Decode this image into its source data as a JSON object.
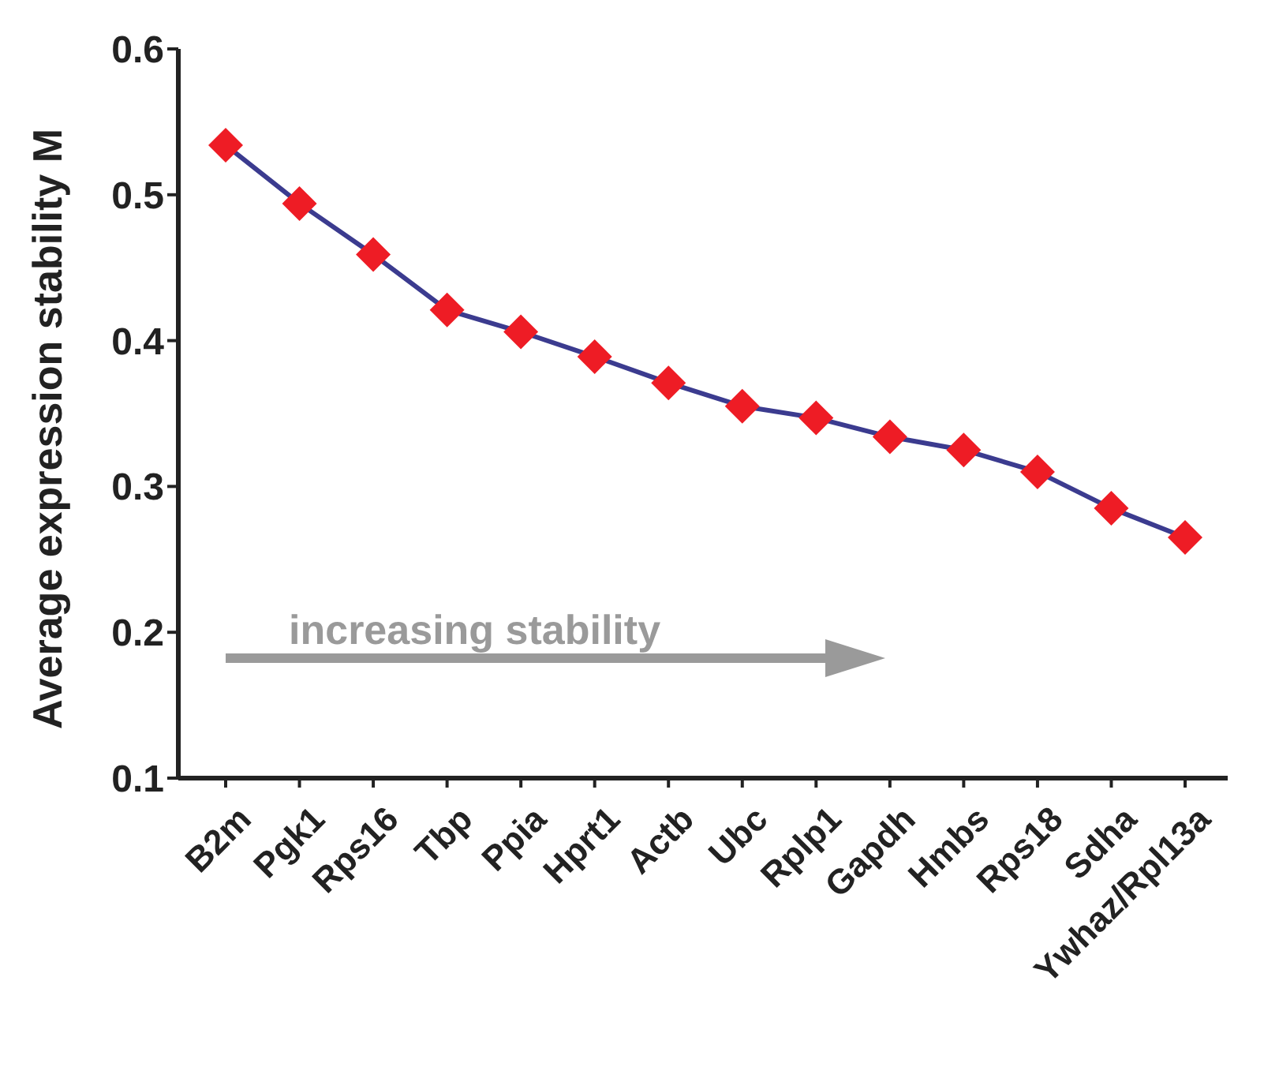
{
  "chart_data": {
    "type": "line",
    "ylabel": "Average expression stability M",
    "categories": [
      "B2m",
      "Pgk1",
      "Rps16",
      "Tbp",
      "Ppia",
      "Hprt1",
      "Actb",
      "Ubc",
      "Rplp1",
      "Gapdh",
      "Hmbs",
      "Rps18",
      "Sdha",
      "Ywhaz/Rpl13a"
    ],
    "series": [
      {
        "color": "#3b3b8f",
        "colors": [
          "#ee1c25",
          "#ee1c25",
          "#ee1c25",
          "#ee1c25",
          "#ee1c25",
          "#ee1c25",
          "#ee1c25",
          "#ee1c25",
          "#ee1c25",
          "#ee1c25",
          "#ee1c25",
          "#ee1c25",
          "#ee1c25",
          "#ee1c25"
        ],
        "values": [
          0.534,
          0.494,
          0.459,
          0.421,
          0.406,
          0.389,
          0.371,
          0.355,
          0.347,
          0.334,
          0.325,
          0.31,
          0.285,
          0.265
        ]
      }
    ],
    "marker": "diamond",
    "ylim": [
      0.1,
      0.6
    ],
    "yticks": [
      0.1,
      0.2,
      0.3,
      0.4,
      0.5,
      0.6
    ],
    "grid": false,
    "annotations": [
      "increasing stability"
    ]
  }
}
